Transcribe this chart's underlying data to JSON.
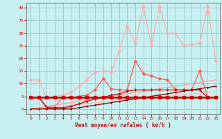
{
  "x": [
    0,
    1,
    2,
    3,
    4,
    5,
    6,
    7,
    8,
    9,
    10,
    11,
    12,
    13,
    14,
    15,
    16,
    17,
    18,
    19,
    20,
    21,
    22,
    23
  ],
  "line_flat": [
    4.5,
    4.5,
    4.5,
    4.5,
    4.5,
    4.5,
    4.5,
    4.5,
    4.5,
    4.5,
    4.5,
    4.5,
    4.5,
    4.5,
    4.5,
    4.5,
    4.5,
    4.5,
    4.5,
    4.5,
    4.5,
    4.5,
    4.5,
    4.5
  ],
  "line_trend1": [
    0.0,
    0.5,
    1.0,
    1.5,
    2.0,
    2.5,
    3.0,
    3.5,
    4.0,
    4.5,
    5.0,
    5.5,
    6.0,
    6.5,
    7.0,
    7.5,
    8.0,
    8.5,
    9.0,
    9.5,
    10.0,
    10.5,
    11.0,
    11.5
  ],
  "line_trend2": [
    0.0,
    0.3,
    0.6,
    0.9,
    1.2,
    1.5,
    1.8,
    2.1,
    2.4,
    2.7,
    3.0,
    3.3,
    3.6,
    3.9,
    4.2,
    4.5,
    4.8,
    5.1,
    5.4,
    5.7,
    6.0,
    6.3,
    6.6,
    6.9
  ],
  "line_medium": [
    4.5,
    4.5,
    1.0,
    1.0,
    4.5,
    4.5,
    5.0,
    5.5,
    7.5,
    12.0,
    8.0,
    7.5,
    7.5,
    19.0,
    14.0,
    13.0,
    12.0,
    11.5,
    7.5,
    7.5,
    7.5,
    15.0,
    4.5,
    4.5
  ],
  "line_pink": [
    11.5,
    11.5,
    4.5,
    5.0,
    5.5,
    6.5,
    9.0,
    11.5,
    14.5,
    15.0,
    14.5,
    23.0,
    33.0,
    26.0,
    40.5,
    25.0,
    40.5,
    30.0,
    30.0,
    25.0,
    25.5,
    26.0,
    40.5,
    19.0
  ],
  "line_darkred1": [
    4.5,
    4.5,
    0.5,
    0.5,
    0.5,
    1.0,
    2.0,
    3.0,
    4.0,
    4.5,
    5.5,
    6.0,
    7.0,
    7.5,
    7.5,
    7.5,
    7.5,
    7.5,
    7.5,
    7.5,
    7.5,
    7.5,
    4.5,
    4.5
  ],
  "line_darkred2": [
    0.0,
    0.0,
    0.0,
    0.0,
    0.0,
    0.0,
    0.5,
    1.0,
    1.5,
    2.0,
    2.5,
    3.0,
    3.5,
    4.0,
    4.5,
    5.0,
    5.5,
    6.0,
    6.5,
    7.0,
    7.5,
    8.0,
    8.5,
    9.0
  ],
  "background_color": "#c8f0f0",
  "grid_color": "#99cccc",
  "xlabel": "Vent moyen/en rafales ( km/h )",
  "ylim": [
    -2,
    42
  ],
  "xlim": [
    -0.5,
    23.5
  ],
  "yticks": [
    0,
    5,
    10,
    15,
    20,
    25,
    30,
    35,
    40
  ],
  "xticks": [
    0,
    1,
    2,
    3,
    4,
    5,
    6,
    7,
    8,
    9,
    10,
    11,
    12,
    13,
    14,
    15,
    16,
    17,
    18,
    19,
    20,
    21,
    22,
    23
  ]
}
